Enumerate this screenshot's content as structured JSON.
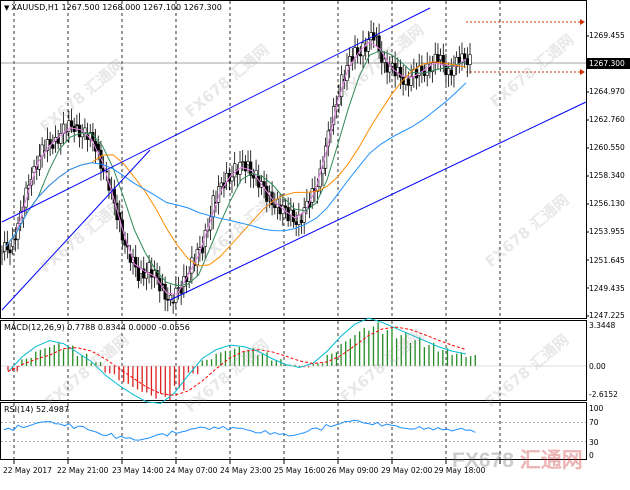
{
  "chart": {
    "title": "XAUUSD,H1  1267.500 1268.000 1267.100 1267.300",
    "current_price_tag": "1267.300",
    "price_axis": [
      "1269.455",
      "1264.970",
      "1262.760",
      "1260.550",
      "1258.340",
      "1256.130",
      "1253.955",
      "1251.645",
      "1249.435",
      "1247.225"
    ],
    "time_axis": [
      "22 May 2017",
      "22 May 21:00",
      "23 May 14:00",
      "24 May 07:00",
      "24 May 23:00",
      "25 May 16:00",
      "26 May 09:00",
      "29 May 02:00",
      "29 May 18:00"
    ]
  },
  "macd": {
    "label": "MACD(12,26,9) 0.7788 0.8344 0.0000 -0.0556",
    "axis": [
      "3.3448",
      "0.00",
      "-2.6152"
    ]
  },
  "rsi": {
    "label": "RSI(14) 52.4987",
    "axis": [
      "100",
      "70",
      "30",
      "0"
    ]
  },
  "watermark": {
    "text": "FX678 汇通网",
    "logo_left": "FX678",
    "logo_right": "汇通网"
  },
  "colors": {
    "up_candle": "#000000",
    "channel": "#0000ff",
    "ma_fast": "#2e8b57",
    "ma_mid": "#ff8c00",
    "ma_slow": "#1e90ff",
    "ma_fastest": "#ee82ee",
    "macd_pos": "#228b22",
    "macd_neg": "#dd2222",
    "macd_signal": "#ff0000",
    "macd_line": "#00bcd4",
    "rsi_line": "#1e90ff"
  },
  "chart_data": {
    "type": "candlestick",
    "title": "XAUUSD,H1",
    "y_range": [
      1247.225,
      1271.0
    ],
    "approx_closes": [
      1252.6,
      1254.8,
      1258.3,
      1259.9,
      1260.7,
      1261.5,
      1262.0,
      1261.2,
      1260.5,
      1257.8,
      1255.2,
      1252.0,
      1250.5,
      1250.8,
      1249.7,
      1248.3,
      1249.5,
      1251.2,
      1252.6,
      1256.0,
      1257.6,
      1258.5,
      1258.9,
      1258.0,
      1256.5,
      1255.8,
      1255.0,
      1254.6,
      1256.0,
      1258.2,
      1262.0,
      1265.5,
      1267.2,
      1268.0,
      1268.8,
      1266.8,
      1266.0,
      1265.5,
      1265.8,
      1266.5,
      1267.0,
      1266.2,
      1266.8,
      1267.3
    ],
    "macd_approx": [
      -0.4,
      0.6,
      1.3,
      1.7,
      1.5,
      0.9,
      0.3,
      -0.6,
      -1.3,
      -1.9,
      -2.4,
      -2.5,
      -1.8,
      -0.6,
      0.5,
      1.1,
      1.4,
      1.3,
      1.0,
      0.5,
      0.1,
      -0.1,
      0.2,
      1.0,
      2.0,
      2.8,
      3.2,
      2.9,
      2.5,
      2.1,
      1.7,
      1.3,
      1.0,
      0.8
    ],
    "rsi_approx": [
      55,
      62,
      68,
      70,
      66,
      60,
      52,
      45,
      38,
      35,
      38,
      44,
      50,
      55,
      58,
      60,
      57,
      55,
      50,
      46,
      44,
      48,
      56,
      64,
      70,
      72,
      68,
      64,
      60,
      58,
      56,
      57,
      55,
      52
    ]
  }
}
